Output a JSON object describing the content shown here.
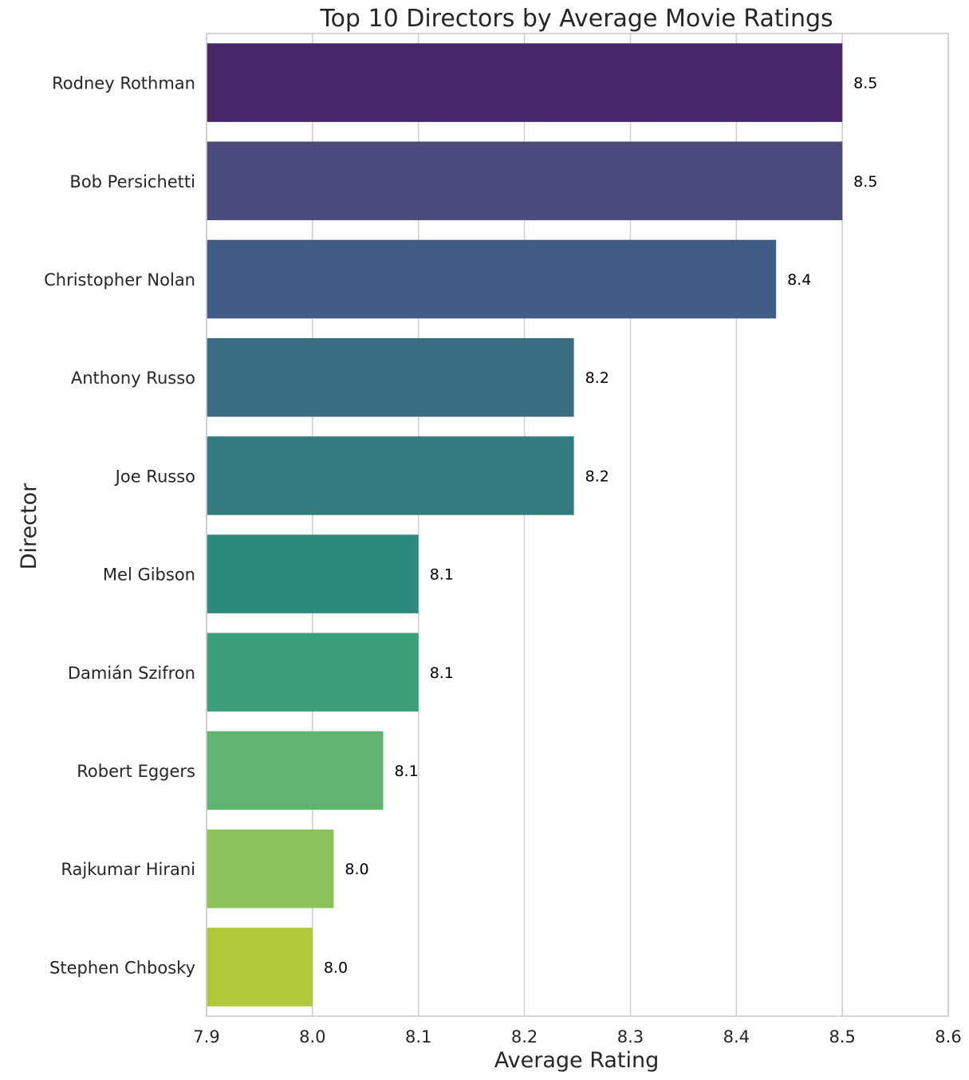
{
  "chart_data": {
    "type": "bar",
    "orientation": "horizontal",
    "title": "Top 10 Directors by Average Movie Ratings",
    "xlabel": "Average Rating",
    "ylabel": "Director",
    "xlim": [
      7.9,
      8.6
    ],
    "xticks": [
      "7.9",
      "8.0",
      "8.1",
      "8.2",
      "8.3",
      "8.4",
      "8.5",
      "8.6"
    ],
    "grid": true,
    "categories": [
      "Rodney Rothman",
      "Bob Persichetti",
      "Christopher Nolan",
      "Anthony Russo",
      "Joe Russo",
      "Mel Gibson",
      "Damián Szifron",
      "Robert Eggers",
      "Rajkumar Hirani",
      "Stephen Chbosky"
    ],
    "values": [
      8.5,
      8.5,
      8.4375,
      8.2467,
      8.2467,
      8.1,
      8.1,
      8.0667,
      8.02,
      8.0
    ],
    "data_labels": [
      "8.5",
      "8.5",
      "8.4",
      "8.2",
      "8.2",
      "8.1",
      "8.1",
      "8.1",
      "8.0",
      "8.0"
    ],
    "colors": [
      "#482768",
      "#4a4a7d",
      "#425d85",
      "#3a6d83",
      "#327c80",
      "#2d8b7d",
      "#3b9f78",
      "#5fb46f",
      "#8bc35b",
      "#b2c73a"
    ]
  }
}
